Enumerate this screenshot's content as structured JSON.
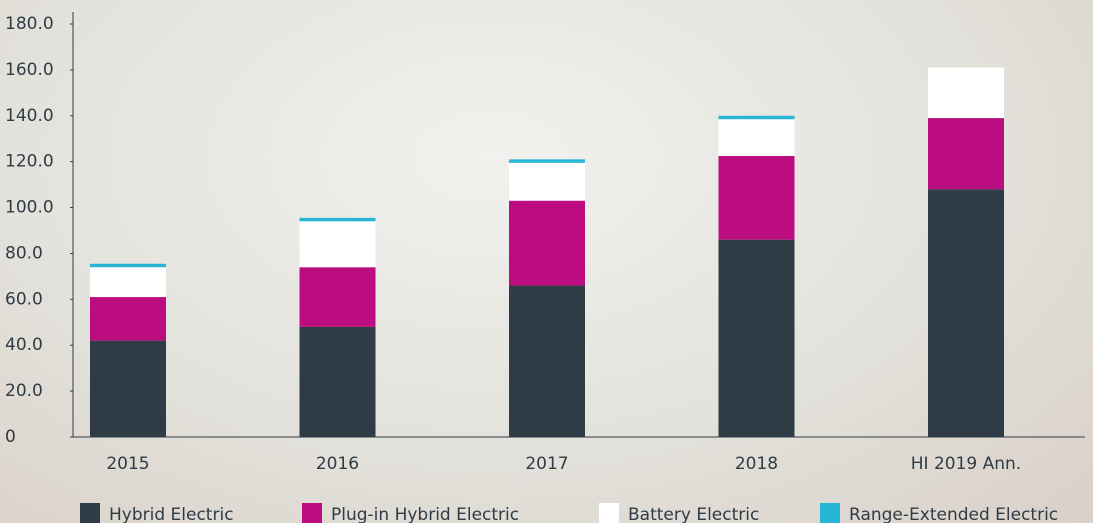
{
  "chart_data": {
    "type": "stacked_bar",
    "categories": [
      "2015",
      "2016",
      "2017",
      "2018",
      "HI 2019 Ann."
    ],
    "series": [
      {
        "name": "Hybrid Electric",
        "color": "#2f3c45",
        "values": [
          42,
          48,
          66,
          86,
          108
        ]
      },
      {
        "name": "Plug-in  Hybrid Electric",
        "color": "#bb0d7f",
        "values": [
          19,
          26,
          37,
          36.5,
          31
        ]
      },
      {
        "name": "Battery Electric",
        "color": "#ffffff",
        "values": [
          13,
          20,
          16.5,
          16,
          22
        ]
      },
      {
        "name": "Range-Extended  Electric",
        "color": "#27b6d6",
        "values": [
          1.5,
          1.5,
          1.5,
          1.5,
          0
        ]
      }
    ],
    "ylim": [
      0,
      180
    ],
    "yticks": [
      0,
      {
        "value": 20,
        "label": "20.0"
      },
      {
        "value": 40,
        "label": "40.0"
      },
      {
        "value": 60,
        "label": "60.0"
      },
      {
        "value": 80,
        "label": "80.0"
      },
      {
        "value": 100,
        "label": "100.0"
      },
      {
        "value": 120,
        "label": "120.0"
      },
      {
        "value": 140,
        "label": "140.0"
      },
      {
        "value": 160,
        "label": "160.0"
      },
      {
        "value": 180,
        "label": "180.0"
      }
    ],
    "legend": "bottom"
  }
}
